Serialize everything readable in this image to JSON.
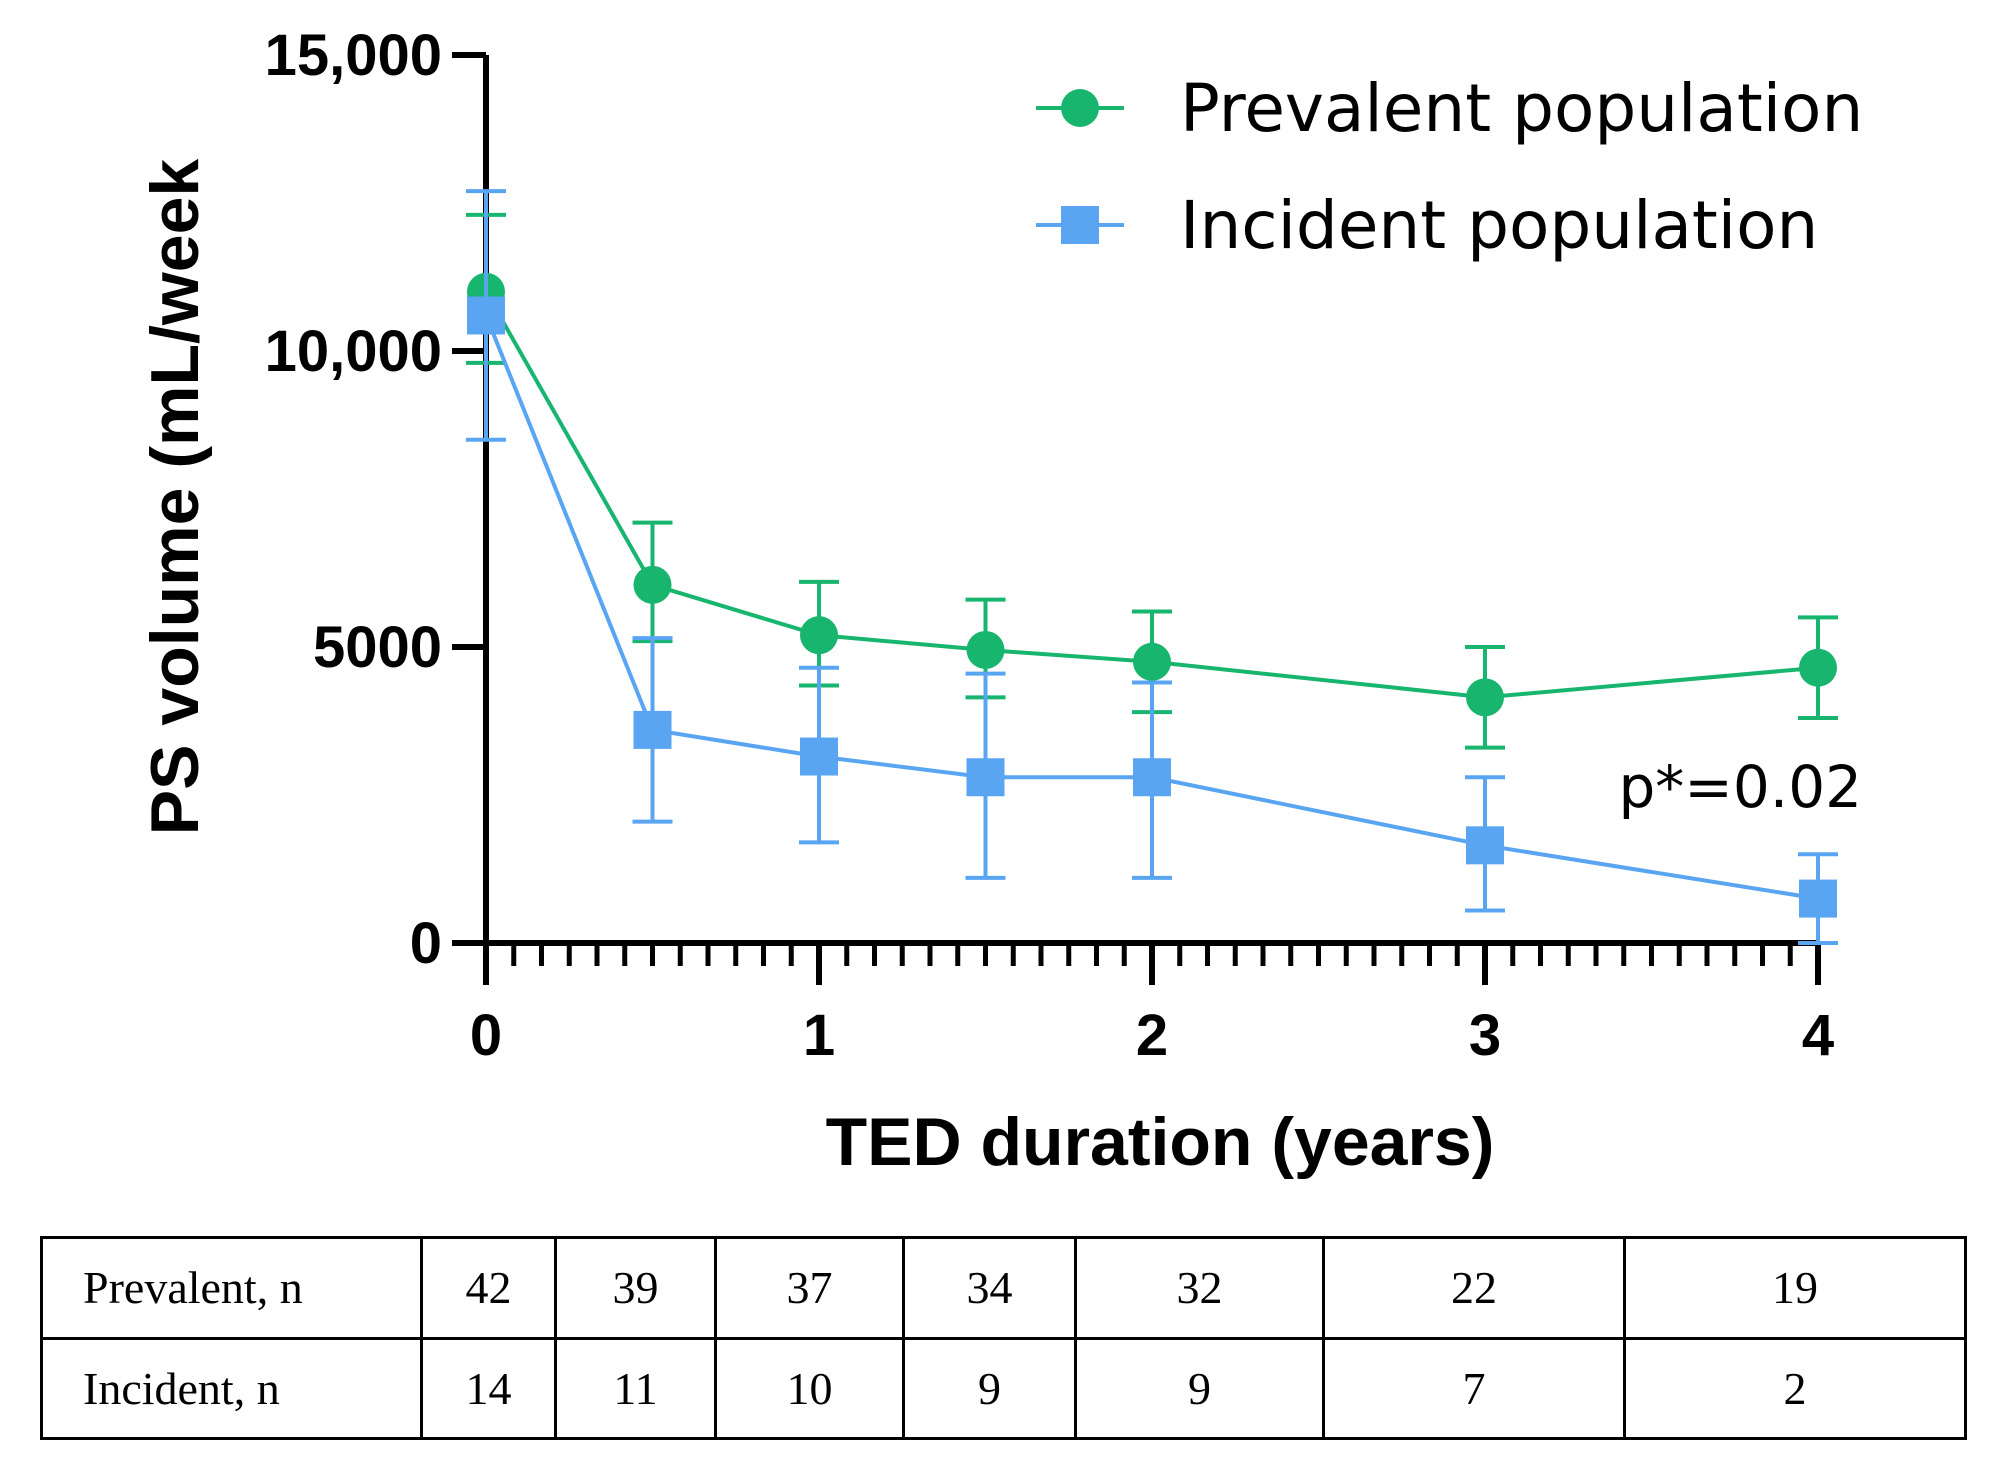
{
  "chart_data": {
    "type": "line",
    "title": "",
    "xlabel": "TED duration (years)",
    "ylabel": "PS volume (mL/week",
    "xlim": [
      0,
      4
    ],
    "ylim": [
      0,
      15000
    ],
    "x_ticks": [
      0,
      1,
      2,
      3,
      4
    ],
    "y_ticks": [
      0,
      5000,
      10000,
      15000
    ],
    "y_tick_labels": [
      "0",
      "5000",
      "10,000",
      "15,000"
    ],
    "legend_position": "top-right",
    "series": [
      {
        "name": "Prevalent population",
        "color": "#18b56f",
        "marker": "circle",
        "x": [
          0,
          0.5,
          1,
          1.5,
          2,
          3,
          4
        ],
        "y": [
          11000,
          6050,
          5200,
          4950,
          4750,
          4150,
          4650
        ],
        "err_low": [
          9800,
          5100,
          4350,
          4150,
          3900,
          3300,
          3800
        ],
        "err_high": [
          12300,
          7100,
          6100,
          5800,
          5600,
          5000,
          5500
        ]
      },
      {
        "name": "Incident population",
        "color": "#5aa5f2",
        "marker": "square",
        "x": [
          0,
          0.5,
          1,
          1.5,
          2,
          3,
          4
        ],
        "y": [
          10600,
          3600,
          3150,
          2800,
          2800,
          1650,
          750
        ],
        "err_low": [
          8500,
          2050,
          1700,
          1100,
          1100,
          550,
          0
        ],
        "err_high": [
          12700,
          5150,
          4650,
          4550,
          4400,
          2800,
          1500
        ]
      }
    ],
    "annotations": [
      {
        "text": "p*=0.02"
      }
    ]
  },
  "n_table": {
    "rows": [
      {
        "label": "Prevalent, n",
        "values": [
          "42",
          "39",
          "37",
          "34",
          "32",
          "22",
          "19"
        ]
      },
      {
        "label": "Incident, n",
        "values": [
          "14",
          "11",
          "10",
          "9",
          "9",
          "7",
          "2"
        ]
      }
    ]
  }
}
